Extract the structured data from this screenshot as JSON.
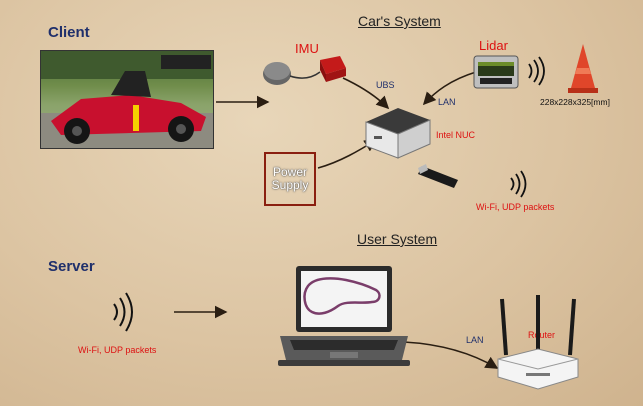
{
  "labels": {
    "client": "Client",
    "server": "Server",
    "cars_system": "Car's System",
    "user_system": "User System",
    "imu": "IMU",
    "lidar": "Lidar",
    "ubs": "UBS",
    "lan_top": "LAN",
    "intel_nuc": "Intel NUC",
    "power_supply": "Power Supply",
    "wifi_top": "Wi-Fi, UDP packets",
    "wifi_bottom": "Wi-Fi, UDP packets",
    "lan_bottom": "LAN",
    "router": "Router",
    "cone_dims": "228x228x325[mm]"
  },
  "colors": {
    "heading": "#1f2f6b",
    "red_text": "#dd1111",
    "arrow": "#3a2a1a"
  }
}
